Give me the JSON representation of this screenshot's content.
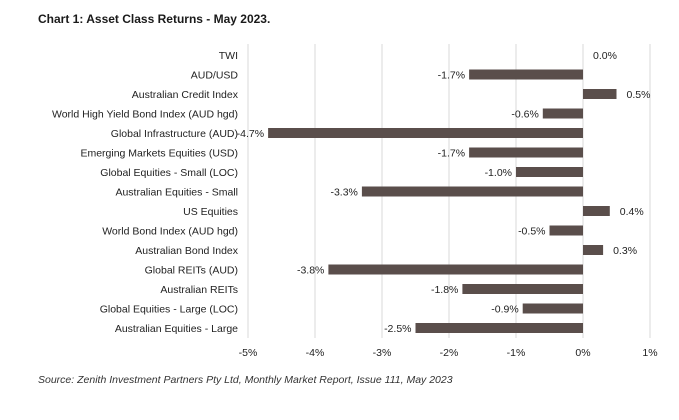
{
  "title": "Chart 1: Asset Class Returns - May 2023.",
  "source": "Source: Zenith Investment Partners Pty Ltd, Monthly Market Report, Issue 111, May 2023",
  "chart_data": {
    "type": "bar",
    "orientation": "horizontal",
    "title": "Chart 1: Asset Class Returns - May 2023.",
    "xlabel": "",
    "ylabel": "",
    "xlim": [
      -5,
      1
    ],
    "xticks": [
      -5,
      -4,
      -3,
      -2,
      -1,
      0,
      1
    ],
    "xtick_labels": [
      "-5%",
      "-4%",
      "-3%",
      "-2%",
      "-1%",
      "0%",
      "1%"
    ],
    "grid": true,
    "bar_color": "#5a4e4b",
    "categories": [
      "TWI",
      "AUD/USD",
      "Australian Credit Index",
      "World High Yield Bond Index (AUD hgd)",
      "Global Infrastructure (AUD)",
      "Emerging Markets Equities (USD)",
      "Global Equities - Small (LOC)",
      "Australian Equities - Small",
      "US Equities",
      "World Bond Index (AUD hgd)",
      "Australian Bond Index",
      "Global REITs (AUD)",
      "Australian REITs",
      "Global Equities - Large (LOC)",
      "Australian Equities - Large"
    ],
    "values": [
      0.0,
      -1.7,
      0.5,
      -0.6,
      -4.7,
      -1.7,
      -1.0,
      -3.3,
      0.4,
      -0.5,
      0.3,
      -3.8,
      -1.8,
      -0.9,
      -2.5
    ],
    "data_labels": [
      "0.0%",
      "-1.7%",
      "0.5%",
      "-0.6%",
      "-4.7%",
      "-1.7%",
      "-1.0%",
      "-3.3%",
      "0.4%",
      "-0.5%",
      "0.3%",
      "-3.8%",
      "-1.8%",
      "-0.9%",
      "-2.5%"
    ]
  }
}
